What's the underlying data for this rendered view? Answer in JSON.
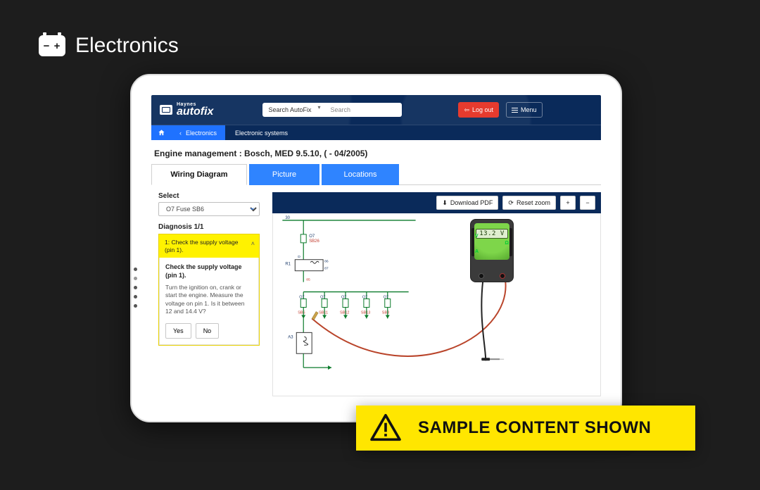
{
  "outer": {
    "category_label": "Electronics",
    "battery_glyph": "− +"
  },
  "brand": {
    "small": "Haynes",
    "big": "autofix"
  },
  "search": {
    "scope_label": "Search AutoFix",
    "placeholder": "Search"
  },
  "header_buttons": {
    "logout": "Log out",
    "menu": "Menu"
  },
  "breadcrumbs": {
    "level1": "Electronics",
    "level2": "Electronic systems"
  },
  "page_title": "Engine management :  Bosch, MED 9.5.10, ( - 04/2005)",
  "tabs": {
    "wiring": "Wiring Diagram",
    "picture": "Picture",
    "locations": "Locations"
  },
  "left": {
    "select_label": "Select",
    "select_value": "O7  Fuse  SB6",
    "diagnosis_label": "Diagnosis 1/1",
    "accordion_head": "1: Check the supply voltage (pin 1).",
    "body_title": "Check the supply voltage (pin 1).",
    "body_text": "Turn the ignition on, crank or start the engine. Measure the voltage on pin 1. Is it between 12 and 14.4 V?",
    "yes": "Yes",
    "no": "No"
  },
  "toolbar": {
    "download": "Download PDF",
    "reset": "Reset zoom",
    "plus": "+",
    "minus": "−"
  },
  "meter": {
    "reading": "13.2 V",
    "v": "V",
    "a": "A",
    "ohm": "Ω"
  },
  "diagram": {
    "top_label": "30",
    "node_o7": "O7",
    "node_sb26": "SB26",
    "node_r1": "R1",
    "node_d": "D",
    "node_86": "86",
    "node_87": "87",
    "node_85": "85",
    "fuse_row": [
      {
        "top": "O7",
        "bot": "SB6"
      },
      {
        "top": "O7",
        "bot": "SB11"
      },
      {
        "top": "O7",
        "bot": "SB12"
      },
      {
        "top": "O7",
        "bot": "SB13"
      },
      {
        "top": "O7",
        "bot": "SB8"
      }
    ],
    "node_a3": "A3",
    "colors": {
      "wire": "#0a7a2a",
      "label_red": "#c23a2d",
      "label_dark": "#1a3a6a"
    }
  },
  "banner": {
    "text": "SAMPLE CONTENT SHOWN"
  }
}
